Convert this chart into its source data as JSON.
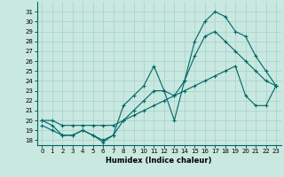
{
  "xlabel": "Humidex (Indice chaleur)",
  "ylabel": "",
  "bg_color": "#c8e8e0",
  "line_color": "#006666",
  "grid_color": "#a8d0cc",
  "xlim": [
    -0.5,
    23.5
  ],
  "ylim": [
    17.5,
    32.0
  ],
  "yticks": [
    18,
    19,
    20,
    21,
    22,
    23,
    24,
    25,
    26,
    27,
    28,
    29,
    30,
    31
  ],
  "xticks": [
    0,
    1,
    2,
    3,
    4,
    5,
    6,
    7,
    8,
    9,
    10,
    11,
    12,
    13,
    14,
    15,
    16,
    17,
    18,
    19,
    20,
    21,
    22,
    23
  ],
  "line1_x": [
    0,
    1,
    2,
    3,
    4,
    5,
    6,
    7,
    8,
    9,
    10,
    11,
    12,
    13,
    14,
    15,
    16,
    17,
    18,
    19,
    20,
    21,
    22,
    23
  ],
  "line1_y": [
    19.5,
    19.0,
    18.5,
    18.5,
    19.0,
    18.5,
    17.8,
    18.5,
    21.5,
    22.5,
    23.5,
    25.5,
    23.0,
    20.0,
    24.0,
    28.0,
    30.0,
    31.0,
    30.5,
    29.0,
    28.5,
    26.5,
    25.0,
    23.5
  ],
  "line2_x": [
    0,
    1,
    2,
    3,
    4,
    5,
    6,
    7,
    8,
    9,
    10,
    11,
    12,
    13,
    14,
    15,
    16,
    17,
    18,
    19,
    20,
    21,
    22,
    23
  ],
  "line2_y": [
    20.0,
    19.5,
    18.5,
    18.5,
    19.0,
    18.5,
    18.0,
    18.5,
    20.0,
    21.0,
    22.0,
    23.0,
    23.0,
    22.5,
    24.0,
    26.5,
    28.5,
    29.0,
    28.0,
    27.0,
    26.0,
    25.0,
    24.0,
    23.5
  ],
  "line3_x": [
    0,
    1,
    2,
    3,
    4,
    5,
    6,
    7,
    8,
    9,
    10,
    11,
    12,
    13,
    14,
    15,
    16,
    17,
    18,
    19,
    20,
    21,
    22,
    23
  ],
  "line3_y": [
    20.0,
    20.0,
    19.5,
    19.5,
    19.5,
    19.5,
    19.5,
    19.5,
    20.0,
    20.5,
    21.0,
    21.5,
    22.0,
    22.5,
    23.0,
    23.5,
    24.0,
    24.5,
    25.0,
    25.5,
    22.5,
    21.5,
    21.5,
    23.5
  ]
}
